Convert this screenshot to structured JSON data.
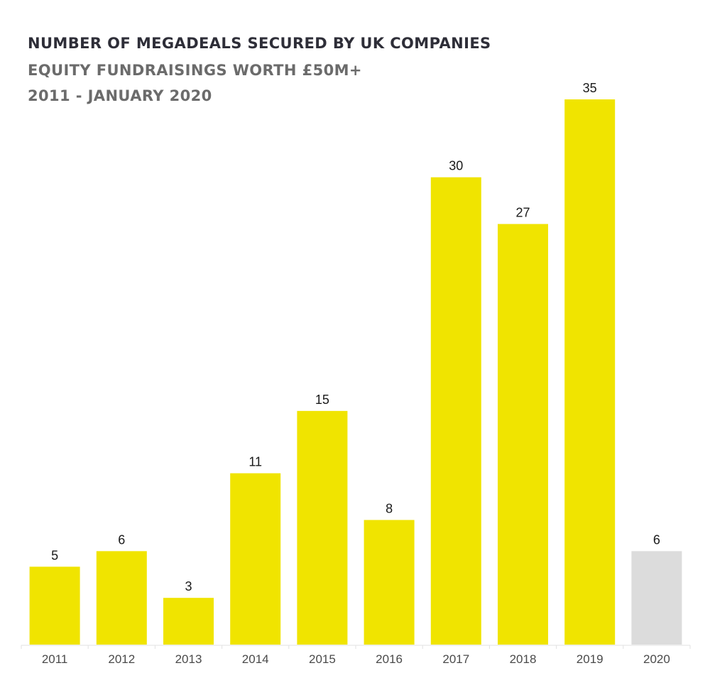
{
  "header": {
    "title": "NUMBER OF MEGADEALS SECURED BY UK COMPANIES",
    "subtitle": "EQUITY FUNDRAISINGS WORTH £50M+",
    "date_range": "2011 - JANUARY 2020"
  },
  "colors": {
    "bar": "#f0e400",
    "bar_highlight": "#dcdcdc",
    "axis": "#e2e2e2"
  },
  "chart_data": {
    "type": "bar",
    "title": "NUMBER OF MEGADEALS SECURED BY UK COMPANIES",
    "subtitle": "EQUITY FUNDRAISINGS WORTH £50M+",
    "categories": [
      "2011",
      "2012",
      "2013",
      "2014",
      "2015",
      "2016",
      "2017",
      "2018",
      "2019",
      "2020"
    ],
    "values": [
      5,
      6,
      3,
      11,
      15,
      8,
      30,
      27,
      35,
      6
    ],
    "value_labels": [
      "5",
      "6",
      "3",
      "11",
      "15",
      "8",
      "30",
      "27",
      "35",
      "6"
    ],
    "highlighted_categories": [
      "2020"
    ],
    "xlabel": "",
    "ylabel": "",
    "ylim": [
      0,
      35
    ],
    "grid": false,
    "legend": "none"
  }
}
